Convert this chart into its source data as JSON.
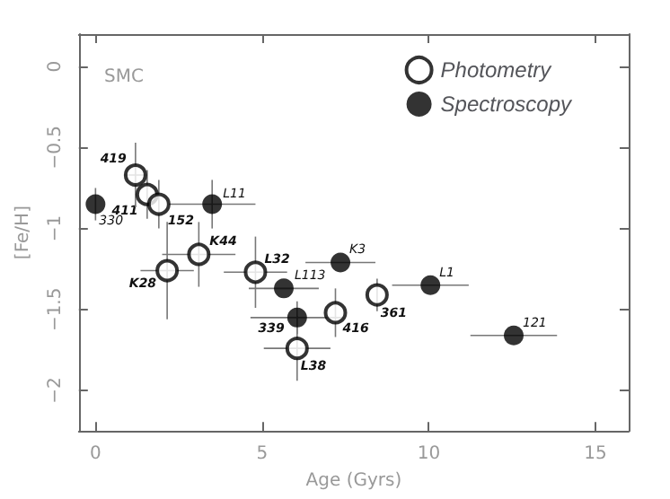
{
  "chart_data": {
    "type": "scatter",
    "xlabel": "Age (Gyrs)",
    "ylabel": "[Fe/H]",
    "xlim": [
      -0.5,
      16
    ],
    "ylim": [
      -2.25,
      0.2
    ],
    "xticks": [
      0,
      5,
      10,
      15
    ],
    "yticks": [
      0,
      -0.5,
      -1,
      -1.5,
      -2
    ],
    "grid": false,
    "legend": "top right",
    "marker": "circle",
    "series": [
      {
        "name": "Photometry",
        "color": "#ffffff",
        "x": [
          1.2,
          1.55,
          1.9,
          3.1,
          2.15,
          4.8,
          7.2,
          8.45,
          6.05
        ],
        "values": [
          -0.67,
          -0.79,
          -0.85,
          -1.16,
          -1.26,
          -1.27,
          -1.52,
          -1.41,
          -1.74
        ],
        "errors": [
          0.2,
          0.15,
          0.15,
          0.2,
          0.3,
          0.22,
          0.15,
          0.1,
          0.2
        ],
        "xerrors": [
          0.3,
          null,
          null,
          1.1,
          0.8,
          0.95,
          null,
          null,
          1.0
        ]
      },
      {
        "name": "Spectroscopy",
        "color": "#000000",
        "x": [
          0,
          3.5,
          5.65,
          6.05,
          7.35,
          10.05,
          12.55
        ],
        "values": [
          -0.85,
          -0.85,
          -1.37,
          -1.55,
          -1.21,
          -1.35,
          -1.66
        ],
        "errors": [
          0.1,
          0.15,
          null,
          0.1,
          null,
          null,
          null
        ],
        "xerrors": [
          null,
          1.3,
          1.05,
          1.4,
          1.05,
          1.15,
          1.3
        ]
      }
    ],
    "annotations": [
      "SMC",
      {
        "text": "419",
        "x": 1.2,
        "y": -0.67
      },
      {
        "text": "411",
        "x": 1.55,
        "y": -0.79
      },
      {
        "text": "152",
        "x": 1.9,
        "y": -0.85
      },
      {
        "text": "K44",
        "x": 3.1,
        "y": -1.16
      },
      {
        "text": "K28",
        "x": 2.15,
        "y": -1.26
      },
      {
        "text": "L32",
        "x": 4.8,
        "y": -1.27
      },
      {
        "text": "416",
        "x": 7.2,
        "y": -1.52
      },
      {
        "text": "361",
        "x": 8.45,
        "y": -1.41
      },
      {
        "text": "L38",
        "x": 6.05,
        "y": -1.74
      },
      {
        "text": "330",
        "x": 0,
        "y": -0.85
      },
      {
        "text": "L11",
        "x": 3.5,
        "y": -0.85
      },
      {
        "text": "L113",
        "x": 5.65,
        "y": -1.37
      },
      {
        "text": "339",
        "x": 6.05,
        "y": -1.55
      },
      {
        "text": "K3",
        "x": 7.35,
        "y": -1.21
      },
      {
        "text": "L1",
        "x": 10.05,
        "y": -1.35
      },
      {
        "text": "121",
        "x": 12.55,
        "y": -1.66
      }
    ]
  }
}
